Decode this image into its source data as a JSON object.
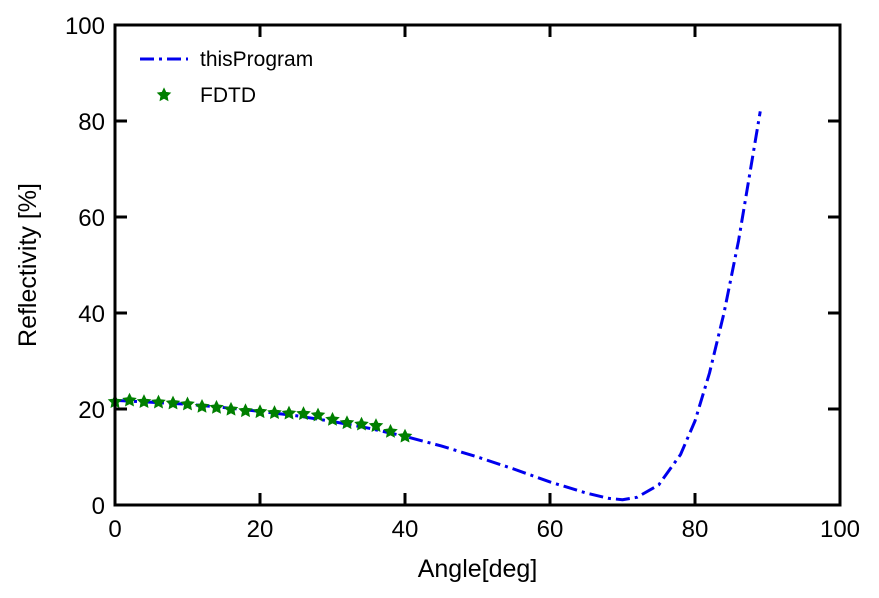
{
  "chart_data": {
    "type": "line",
    "title": "",
    "xlabel": "Angle[deg]",
    "ylabel": "Reflectivity [%]",
    "xlim": [
      0,
      100
    ],
    "ylim": [
      0,
      100
    ],
    "xticks": [
      "0",
      "20",
      "40",
      "60",
      "80",
      "100"
    ],
    "yticks": [
      "0",
      "20",
      "40",
      "60",
      "80",
      "100"
    ],
    "grid": false,
    "legend_position": "top-left",
    "series": [
      {
        "name": "thisProgram",
        "style": "dash-dot line",
        "color": "#0000ee",
        "x": [
          0,
          5,
          10,
          15,
          20,
          25,
          30,
          35,
          40,
          45,
          50,
          55,
          60,
          65,
          68,
          70,
          72,
          75,
          78,
          80,
          82,
          84,
          86,
          88,
          89
        ],
        "y": [
          21.8,
          21.4,
          21.0,
          20.3,
          19.5,
          18.6,
          17.4,
          16.0,
          14.3,
          12.3,
          10.0,
          7.5,
          4.8,
          2.5,
          1.4,
          1.1,
          1.6,
          4.2,
          10.5,
          17.5,
          27.5,
          40.0,
          55.0,
          73.0,
          82.0
        ]
      },
      {
        "name": "FDTD",
        "style": "markers",
        "color": "#007f00",
        "x": [
          0,
          2,
          4,
          6,
          8,
          10,
          12,
          14,
          16,
          18,
          20,
          22,
          24,
          26,
          28,
          30,
          32,
          34,
          36,
          38,
          40
        ],
        "y": [
          21.5,
          21.8,
          21.5,
          21.4,
          21.2,
          21.0,
          20.5,
          20.3,
          19.9,
          19.6,
          19.4,
          19.2,
          19.1,
          19.0,
          18.7,
          17.8,
          17.1,
          16.8,
          16.5,
          15.3,
          14.3
        ]
      }
    ]
  }
}
